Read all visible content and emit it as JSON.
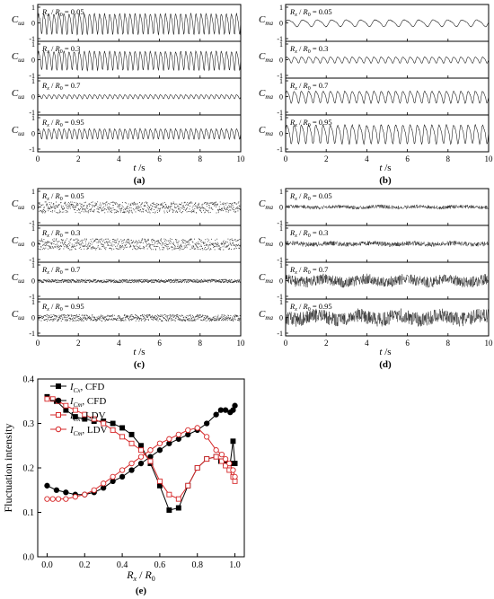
{
  "figure": {
    "panel_labels": [
      "(a)",
      "(b)",
      "(c)",
      "(d)",
      "(e)"
    ]
  },
  "chart_data": [
    {
      "type": "line",
      "panel": "(a)",
      "ylabel_main": "C",
      "ylabel_sub": "ua",
      "xlabel_main": "t",
      "xlabel_unit": " /s",
      "xlim": [
        0,
        10
      ],
      "xticks": [
        0,
        2,
        4,
        6,
        8,
        10
      ],
      "ylim": [
        -1,
        1
      ],
      "yticks": [
        -1,
        0,
        1
      ],
      "signal": "periodic",
      "series": [
        {
          "name": "R_x / R_0 = 0.05",
          "label_value": "0.05",
          "amplitude": 0.6,
          "frequency_hz": 4.0
        },
        {
          "name": "R_x / R_0 = 0.3",
          "label_value": "0.3",
          "amplitude": 0.55,
          "frequency_hz": 4.0
        },
        {
          "name": "R_x / R_0 = 0.7",
          "label_value": "0.7",
          "amplitude": 0.12,
          "frequency_hz": 4.0
        },
        {
          "name": "R_x / R_0 = 0.95",
          "label_value": "0.95",
          "amplitude": 0.3,
          "frequency_hz": 4.0
        }
      ]
    },
    {
      "type": "line",
      "panel": "(b)",
      "ylabel_main": "C",
      "ylabel_sub": "ma",
      "xlabel_main": "t",
      "xlabel_unit": " /s",
      "xlim": [
        0,
        10
      ],
      "xticks": [
        0,
        2,
        4,
        6,
        8,
        10
      ],
      "ylim": [
        -1,
        1
      ],
      "yticks": [
        -1,
        0,
        1
      ],
      "signal": "periodic",
      "series": [
        {
          "name": "R_x / R_0 = 0.05",
          "label_value": "0.05",
          "amplitude": 0.2,
          "frequency_hz": 1.4
        },
        {
          "name": "R_x / R_0 = 0.3",
          "label_value": "0.3",
          "amplitude": 0.18,
          "frequency_hz": 2.8
        },
        {
          "name": "R_x / R_0 = 0.7",
          "label_value": "0.7",
          "amplitude": 0.35,
          "frequency_hz": 2.8
        },
        {
          "name": "R_x / R_0 = 0.95",
          "label_value": "0.95",
          "amplitude": 0.55,
          "frequency_hz": 2.8
        }
      ]
    },
    {
      "type": "scatter",
      "panel": "(c)",
      "ylabel_main": "C",
      "ylabel_sub": "ua",
      "xlabel_main": "t",
      "xlabel_unit": " /s",
      "xlim": [
        0,
        10
      ],
      "xticks": [
        0,
        2,
        4,
        6,
        8,
        10
      ],
      "ylim": [
        -1,
        1
      ],
      "yticks": [
        -1,
        0,
        1
      ],
      "signal": "scattered points",
      "series": [
        {
          "name": "R_x / R_0 = 0.05",
          "label_value": "0.05",
          "amplitude": 0.35
        },
        {
          "name": "R_x / R_0 = 0.3",
          "label_value": "0.3",
          "amplitude": 0.35
        },
        {
          "name": "R_x / R_0 = 0.7",
          "label_value": "0.7",
          "amplitude": 0.1
        },
        {
          "name": "R_x / R_0 = 0.95",
          "label_value": "0.95",
          "amplitude": 0.2
        }
      ]
    },
    {
      "type": "line",
      "panel": "(d)",
      "ylabel_main": "C",
      "ylabel_sub": "ma",
      "xlabel_main": "t",
      "xlabel_unit": " /s",
      "xlim": [
        0,
        10
      ],
      "xticks": [
        0,
        2,
        4,
        6,
        8,
        10
      ],
      "ylim": [
        -1,
        1
      ],
      "yticks": [
        -1,
        0,
        1
      ],
      "signal": "noisy",
      "series": [
        {
          "name": "R_x / R_0 = 0.05",
          "label_value": "0.05",
          "amplitude": 0.12
        },
        {
          "name": "R_x / R_0 = 0.3",
          "label_value": "0.3",
          "amplitude": 0.15
        },
        {
          "name": "R_x / R_0 = 0.7",
          "label_value": "0.7",
          "amplitude": 0.35
        },
        {
          "name": "R_x / R_0 = 0.95",
          "label_value": "0.95",
          "amplitude": 0.45
        }
      ]
    },
    {
      "type": "line",
      "panel": "(e)",
      "ylabel": "Fluctuation intensity",
      "xlabel_main": "R",
      "xlabel_sub": "x",
      "xlabel_slash": " / ",
      "xlabel_main2": "R",
      "xlabel_sub2": "0",
      "xlim": [
        -0.05,
        1.05
      ],
      "ylim": [
        0.0,
        0.4
      ],
      "xticks": [
        "0.0",
        "0.2",
        "0.4",
        "0.6",
        "0.8",
        "1.0"
      ],
      "yticks": [
        "0.0",
        "0.1",
        "0.2",
        "0.3",
        "0.4"
      ],
      "legend_position": "top-left",
      "series": [
        {
          "legend_main": "I",
          "legend_sub": "Cx",
          "legend_suffix": ", CFD",
          "color": "#000000",
          "marker": "square",
          "filled": true,
          "x": [
            0.0,
            0.05,
            0.1,
            0.15,
            0.2,
            0.25,
            0.3,
            0.35,
            0.4,
            0.45,
            0.5,
            0.55,
            0.6,
            0.65,
            0.7,
            0.75,
            0.8,
            0.85,
            0.9,
            0.925,
            0.95,
            0.975,
            0.99,
            1.0
          ],
          "y": [
            0.36,
            0.35,
            0.33,
            0.315,
            0.31,
            0.305,
            0.305,
            0.3,
            0.29,
            0.275,
            0.25,
            0.21,
            0.16,
            0.105,
            0.11,
            0.16,
            0.2,
            0.22,
            0.225,
            0.215,
            0.21,
            0.21,
            0.26,
            0.21
          ]
        },
        {
          "legend_main": "I",
          "legend_sub": "Cm",
          "legend_suffix": ", CFD",
          "color": "#000000",
          "marker": "circle",
          "filled": true,
          "x": [
            0.0,
            0.05,
            0.1,
            0.15,
            0.2,
            0.25,
            0.3,
            0.35,
            0.4,
            0.45,
            0.5,
            0.55,
            0.6,
            0.65,
            0.7,
            0.75,
            0.8,
            0.85,
            0.9,
            0.925,
            0.95,
            0.975,
            0.99,
            1.0
          ],
          "y": [
            0.16,
            0.15,
            0.145,
            0.14,
            0.14,
            0.145,
            0.155,
            0.17,
            0.18,
            0.195,
            0.21,
            0.225,
            0.24,
            0.255,
            0.265,
            0.275,
            0.285,
            0.3,
            0.32,
            0.33,
            0.33,
            0.325,
            0.33,
            0.34
          ]
        },
        {
          "legend_main": "I",
          "legend_sub": "Cx",
          "legend_suffix": ", LDV",
          "color": "#d62728",
          "marker": "square",
          "filled": false,
          "x": [
            0.0,
            0.03,
            0.06,
            0.1,
            0.15,
            0.2,
            0.25,
            0.3,
            0.35,
            0.4,
            0.45,
            0.5,
            0.55,
            0.6,
            0.65,
            0.7,
            0.75,
            0.8,
            0.85,
            0.9,
            0.93,
            0.95,
            0.97,
            0.99,
            1.0
          ],
          "y": [
            0.355,
            0.355,
            0.35,
            0.34,
            0.33,
            0.32,
            0.31,
            0.3,
            0.285,
            0.27,
            0.255,
            0.24,
            0.215,
            0.17,
            0.14,
            0.13,
            0.16,
            0.2,
            0.22,
            0.225,
            0.215,
            0.205,
            0.195,
            0.18,
            0.17
          ]
        },
        {
          "legend_main": "I",
          "legend_sub": "Cm",
          "legend_suffix": ", LDV",
          "color": "#d62728",
          "marker": "circle",
          "filled": false,
          "x": [
            0.0,
            0.03,
            0.06,
            0.1,
            0.15,
            0.2,
            0.25,
            0.3,
            0.35,
            0.4,
            0.45,
            0.5,
            0.55,
            0.6,
            0.65,
            0.7,
            0.75,
            0.8,
            0.85,
            0.9,
            0.93,
            0.95,
            0.97,
            0.99,
            1.0
          ],
          "y": [
            0.13,
            0.13,
            0.13,
            0.13,
            0.135,
            0.14,
            0.15,
            0.165,
            0.18,
            0.195,
            0.21,
            0.225,
            0.24,
            0.255,
            0.265,
            0.275,
            0.285,
            0.29,
            0.27,
            0.24,
            0.23,
            0.22,
            0.21,
            0.195,
            0.18
          ]
        }
      ]
    }
  ]
}
